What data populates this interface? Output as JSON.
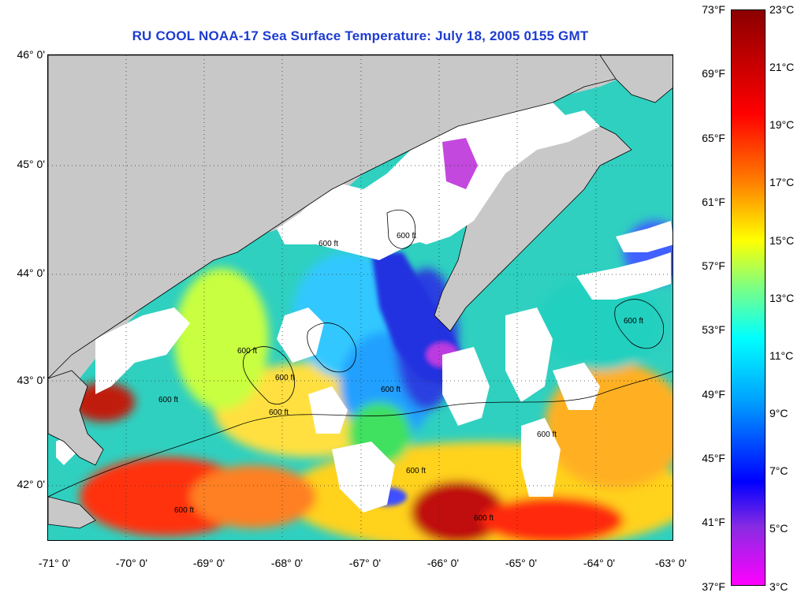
{
  "title": "RU COOL  NOAA-17  Sea Surface Temperature:  July 18, 2005 0155 GMT",
  "map": {
    "lat_ticks": [
      "46° 0'",
      "45° 0'",
      "44° 0'",
      "43° 0'",
      "42° 0'"
    ],
    "lon_ticks": [
      "-71° 0'",
      "-70° 0'",
      "-69° 0'",
      "-68° 0'",
      "-67° 0'",
      "-66° 0'",
      "-65° 0'",
      "-64° 0'",
      "-63° 0'"
    ],
    "contour_label": "600 ft",
    "colors": {
      "land": "#c8c8c8",
      "cloud": "#ffffff",
      "coast": "#000000"
    }
  },
  "colorbar": {
    "fahrenheit_labels": [
      "73°F",
      "69°F",
      "65°F",
      "61°F",
      "57°F",
      "53°F",
      "49°F",
      "45°F",
      "41°F",
      "37°F"
    ],
    "celsius_labels": [
      "23°C",
      "21°C",
      "19°C",
      "17°C",
      "15°C",
      "13°C",
      "11°C",
      "9°C",
      "7°C",
      "5°C",
      "3°C"
    ],
    "colors": [
      "#8b0000",
      "#ff0000",
      "#ff8000",
      "#ffff00",
      "#00ffff",
      "#0000ff",
      "#8a2be2",
      "#ff00ff"
    ]
  }
}
